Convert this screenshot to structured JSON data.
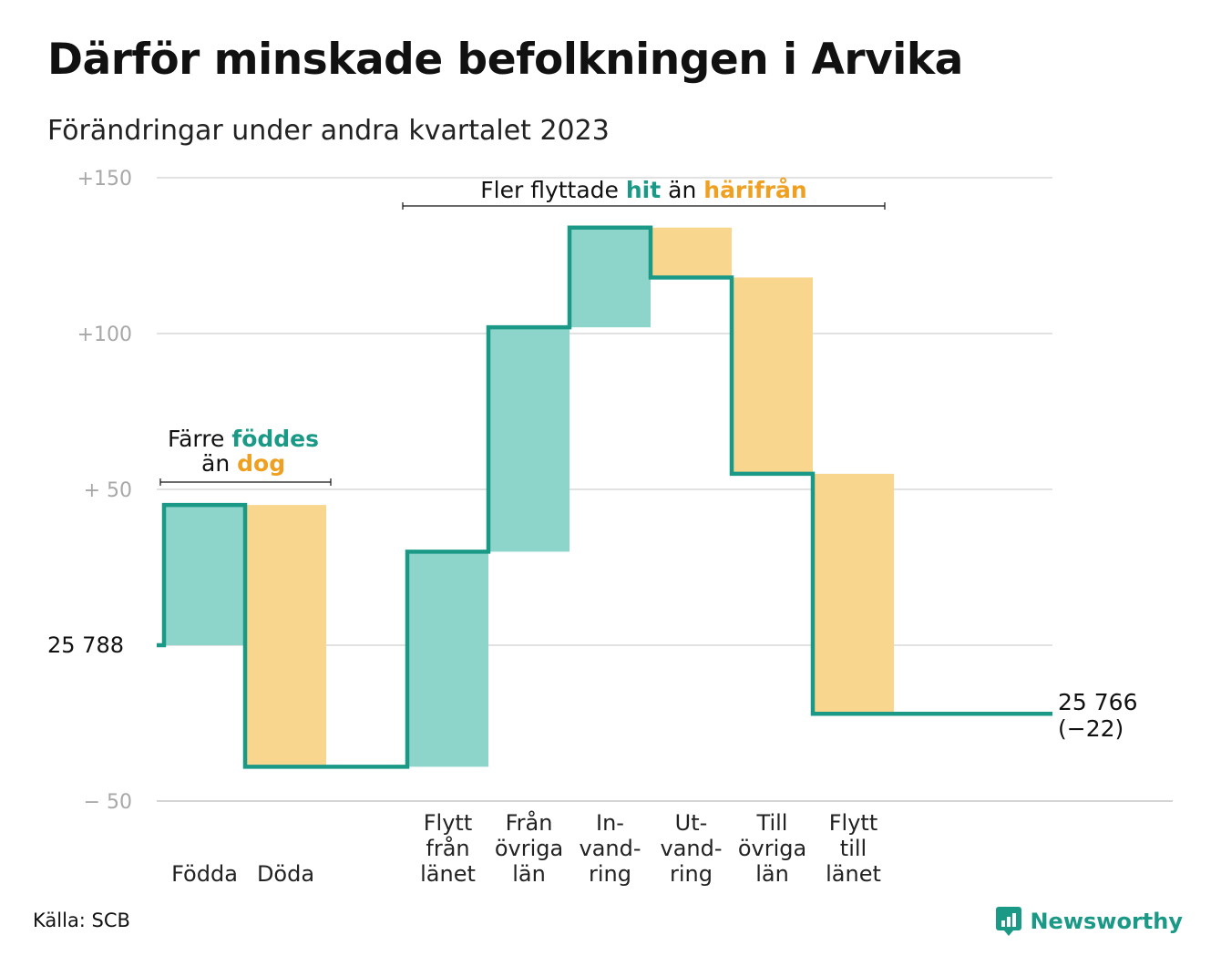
{
  "header": {
    "title": "Därför minskade befolkningen i Arvika",
    "subtitle": "Förändringar under andra kvartalet 2023"
  },
  "colors": {
    "line": "#1a9987",
    "increase_fill": "#8dd4cb",
    "decrease_fill": "#f9d68e",
    "hit_text": "#1a9987",
    "harifran_text": "#f0a020",
    "grid": "#e2e2e2"
  },
  "chart_data": {
    "type": "waterfall",
    "start_value": 25788,
    "end_value": 25766,
    "net_change": -22,
    "y_ticks": [
      {
        "value": 150,
        "label": "+150"
      },
      {
        "value": 100,
        "label": "+100"
      },
      {
        "value": 50,
        "label": "+  50"
      },
      {
        "value": -50,
        "label": "−  50"
      }
    ],
    "baseline_label": "25  788",
    "ylim": [
      -50,
      150
    ],
    "steps": [
      {
        "label": [
          "Födda"
        ],
        "change": 45,
        "kind": "in"
      },
      {
        "label": [
          "Döda"
        ],
        "change": -84,
        "kind": "out"
      },
      {
        "label": [],
        "change": 0,
        "kind": "gap"
      },
      {
        "label": [
          "Flytt",
          "från",
          "länet"
        ],
        "change": 69,
        "kind": "in"
      },
      {
        "label": [
          "Från",
          "övriga",
          "län"
        ],
        "change": 72,
        "kind": "in"
      },
      {
        "label": [
          "In-",
          "vand-",
          "ring"
        ],
        "change": 32,
        "kind": "in"
      },
      {
        "label": [
          "Ut-",
          "vand-",
          "ring"
        ],
        "change": -16,
        "kind": "out"
      },
      {
        "label": [
          "Till",
          "övriga",
          "län"
        ],
        "change": -63,
        "kind": "out"
      },
      {
        "label": [
          "Flytt",
          "till",
          "länet"
        ],
        "change": -77,
        "kind": "out"
      },
      {
        "label": [],
        "change": 0,
        "kind": "end"
      }
    ],
    "end_label": {
      "value_text": "25 766",
      "change_text": "(−22)"
    },
    "annotations": [
      {
        "id": "births",
        "line1_prefix": "Färre",
        "line1_highlight": "föddes",
        "line2_prefix": "än",
        "line2_highlight": "dog"
      },
      {
        "id": "migration",
        "prefix": "Fler flyttade",
        "highlight1": "hit",
        "middle": "än",
        "highlight2": "härifrån"
      }
    ]
  },
  "footer": {
    "source": "Källa: SCB",
    "brand": "Newsworthy",
    "brand_icon": "newsworthy-logo-icon"
  }
}
